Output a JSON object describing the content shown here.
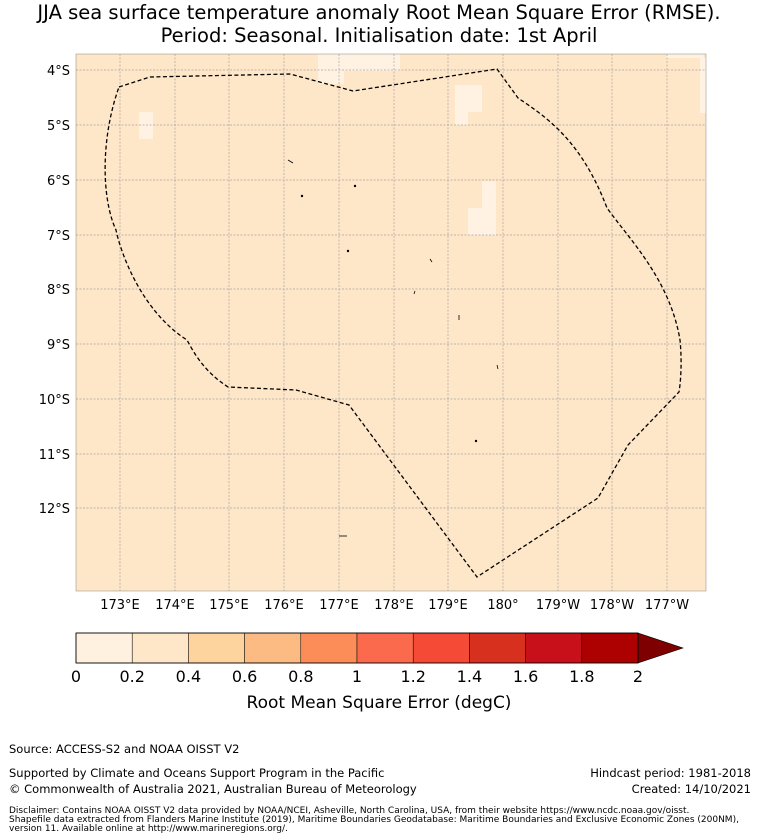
{
  "title": {
    "line1": "JJA sea surface temperature anomaly Root Mean Square Error (RMSE).",
    "line2": "Period: Seasonal. Initialisation date: 1st April"
  },
  "map": {
    "lat_labels": [
      "4°S",
      "5°S",
      "6°S",
      "7°S",
      "8°S",
      "9°S",
      "10°S",
      "11°S",
      "12°S"
    ],
    "lon_labels": [
      "173°E",
      "174°E",
      "175°E",
      "176°E",
      "177°E",
      "178°E",
      "179°E",
      "180°",
      "179°W",
      "178°W",
      "177°W"
    ],
    "region": "Tuvalu Exclusive Economic Zone (200NM)",
    "fill_value_range": "0.2–0.4",
    "colors": {
      "sea_fill": "#fee6c8",
      "light_patch": "#fff2e2",
      "gridline": "#9a9a9a",
      "eez_line": "#000000"
    }
  },
  "colorbar": {
    "ticks": [
      "0",
      "0.2",
      "0.4",
      "0.6",
      "0.8",
      "1",
      "1.2",
      "1.4",
      "1.6",
      "1.8",
      "2"
    ],
    "colors": [
      "#fff1e0",
      "#fee6c8",
      "#fdd49e",
      "#fdbb84",
      "#fc8d59",
      "#fc6a4d",
      "#f44a36",
      "#d7301f",
      "#c8101a",
      "#ad0000",
      "#7f0000"
    ],
    "extend": "max",
    "label": "Root Mean Square Error (degC)"
  },
  "footer": {
    "source": "Source: ACCESS-S2 and NOAA OISST V2",
    "supported_by": "Supported by Climate and Oceans Support Program in the Pacific",
    "copyright": "© Commonwealth of Australia 2021, Australian Bureau of Meteorology",
    "hindcast": "Hindcast period: 1981-2018",
    "created": "Created: 14/10/2021",
    "disclaimer_1": "Disclaimer: Contains NOAA OISST V2 data provided by NOAA/NCEI, Asheville, North Carolina, USA, from their website https://www.ncdc.noaa.gov/oisst.",
    "disclaimer_2": "Shapefile data extracted from Flanders Marine Institute (2019), Maritime Boundaries Geodatabase: Maritime Boundaries and Exclusive Economic Zones (200NM),",
    "disclaimer_3": "version 11. Available online at http://www.marineregions.org/."
  }
}
